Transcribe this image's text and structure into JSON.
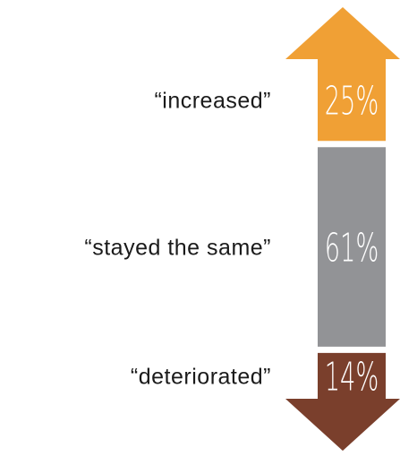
{
  "chart_data": {
    "type": "bar",
    "orientation": "stacked-vertical-arrow",
    "categories": [
      "“increased”",
      "“stayed the same”",
      "“deteriorated”"
    ],
    "values": [
      25,
      61,
      14
    ],
    "value_labels": [
      "25%",
      "61%",
      "14%"
    ],
    "unit": "%",
    "colors": [
      "#f0a035",
      "#929396",
      "#7a3f2c"
    ],
    "arrow_directions": [
      "up",
      "none",
      "down"
    ],
    "title": "",
    "xlabel": "",
    "ylabel": ""
  }
}
